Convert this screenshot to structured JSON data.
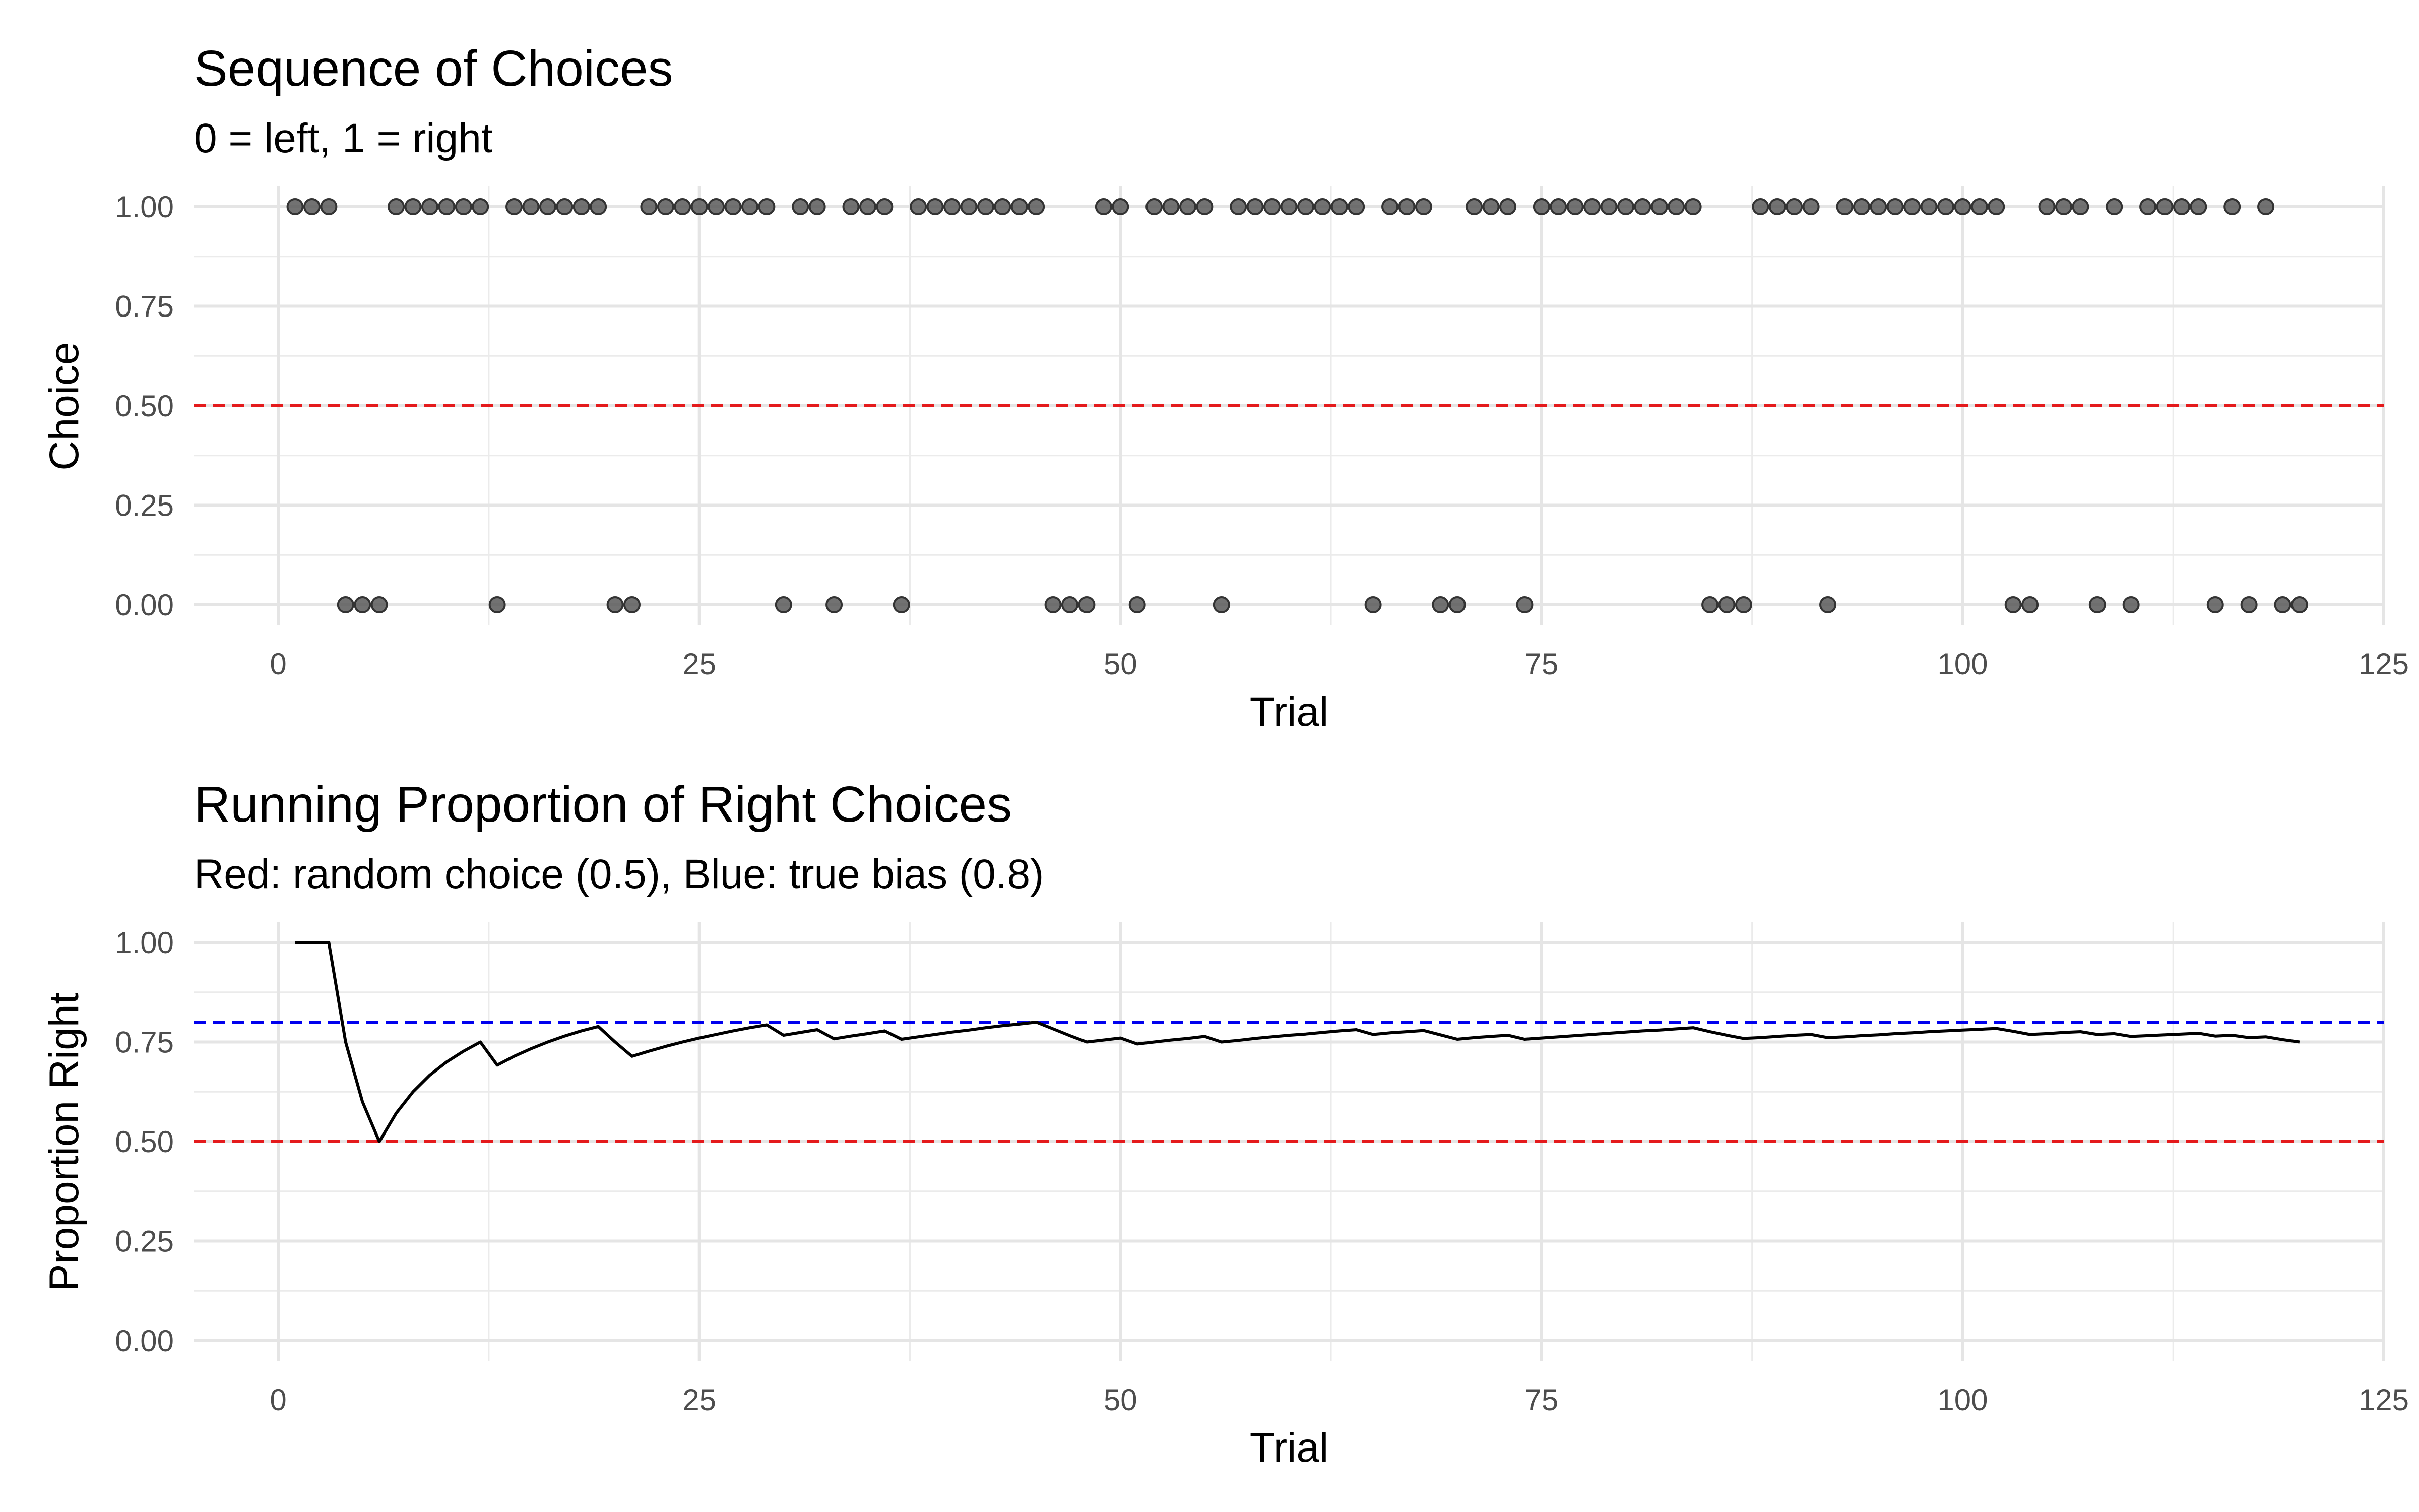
{
  "chart_data": [
    {
      "type": "scatter",
      "title": "Sequence of Choices",
      "subtitle": "0 = left, 1 = right",
      "xlabel": "Trial",
      "ylabel": "Choice",
      "xlim": [
        -5,
        125
      ],
      "ylim": [
        0,
        1
      ],
      "x_ticks": [
        0,
        25,
        50,
        75,
        100,
        125
      ],
      "y_ticks": [
        0,
        0.25,
        0.5,
        0.75,
        1
      ],
      "x_tick_labels": [
        "0",
        "25",
        "50",
        "75",
        "100",
        "125"
      ],
      "y_tick_labels": [
        "0.00",
        "0.25",
        "0.50",
        "0.75",
        "1.00"
      ],
      "grid": true,
      "point_color": "#595959",
      "reference_lines": [
        {
          "y": 0.5,
          "color": "#e41a1c",
          "style": "dashed"
        }
      ],
      "series": [
        {
          "x": [
            1,
            2,
            3,
            4,
            5,
            6,
            7,
            8,
            9,
            10,
            11,
            12,
            13,
            14,
            15,
            16,
            17,
            18,
            19,
            20,
            21,
            22,
            23,
            24,
            25,
            26,
            27,
            28,
            29,
            30,
            31,
            32,
            33,
            34,
            35,
            36,
            37,
            38,
            39,
            40,
            41,
            42,
            43,
            44,
            45,
            46,
            47,
            48,
            49,
            50,
            51,
            52,
            53,
            54,
            55,
            56,
            57,
            58,
            59,
            60,
            61,
            62,
            63,
            64,
            65,
            66,
            67,
            68,
            69,
            70,
            71,
            72,
            73,
            74,
            75,
            76,
            77,
            78,
            79,
            80,
            81,
            82,
            83,
            84,
            85,
            86,
            87,
            88,
            89,
            90,
            91,
            92,
            93,
            94,
            95,
            96,
            97,
            98,
            99,
            100,
            101,
            102,
            103,
            104,
            105,
            106,
            107,
            108,
            109,
            110,
            111,
            112,
            113,
            114,
            115,
            116,
            117,
            118,
            119,
            120
          ],
          "y": [
            1,
            1,
            1,
            0,
            0,
            0,
            1,
            1,
            1,
            1,
            1,
            1,
            0,
            1,
            1,
            1,
            1,
            1,
            1,
            0,
            0,
            1,
            1,
            1,
            1,
            1,
            1,
            1,
            1,
            0,
            1,
            1,
            0,
            1,
            1,
            1,
            0,
            1,
            1,
            1,
            1,
            1,
            1,
            1,
            1,
            0,
            0,
            0,
            1,
            1,
            0,
            1,
            1,
            1,
            1,
            0,
            1,
            1,
            1,
            1,
            1,
            1,
            1,
            1,
            0,
            1,
            1,
            1,
            0,
            0,
            1,
            1,
            1,
            0,
            1,
            1,
            1,
            1,
            1,
            1,
            1,
            1,
            1,
            1,
            0,
            0,
            0,
            1,
            1,
            1,
            1,
            0,
            1,
            1,
            1,
            1,
            1,
            1,
            1,
            1,
            1,
            1,
            0,
            0,
            1,
            1,
            1,
            0,
            1,
            0,
            1,
            1,
            1,
            1,
            0,
            1,
            0,
            1,
            0,
            0
          ]
        }
      ]
    },
    {
      "type": "line",
      "title": "Running Proportion of Right Choices",
      "subtitle": "Red: random choice (0.5), Blue: true bias (0.8)",
      "xlabel": "Trial",
      "ylabel": "Proportion Right",
      "xlim": [
        -5,
        125
      ],
      "ylim": [
        0,
        1
      ],
      "x_ticks": [
        0,
        25,
        50,
        75,
        100,
        125
      ],
      "y_ticks": [
        0,
        0.25,
        0.5,
        0.75,
        1
      ],
      "x_tick_labels": [
        "0",
        "25",
        "50",
        "75",
        "100",
        "125"
      ],
      "y_tick_labels": [
        "0.00",
        "0.25",
        "0.50",
        "0.75",
        "1.00"
      ],
      "grid": true,
      "line_color": "#000000",
      "reference_lines": [
        {
          "y": 0.5,
          "color": "#e41a1c",
          "style": "dashed"
        },
        {
          "y": 0.8,
          "color": "#0000ee",
          "style": "dashed"
        }
      ],
      "series": [
        {
          "x": [
            1,
            2,
            3,
            4,
            5,
            6,
            7,
            8,
            9,
            10,
            11,
            12,
            13,
            14,
            15,
            16,
            17,
            18,
            19,
            20,
            21,
            22,
            23,
            24,
            25,
            26,
            27,
            28,
            29,
            30,
            31,
            32,
            33,
            34,
            35,
            36,
            37,
            38,
            39,
            40,
            41,
            42,
            43,
            44,
            45,
            46,
            47,
            48,
            49,
            50,
            51,
            52,
            53,
            54,
            55,
            56,
            57,
            58,
            59,
            60,
            61,
            62,
            63,
            64,
            65,
            66,
            67,
            68,
            69,
            70,
            71,
            72,
            73,
            74,
            75,
            76,
            77,
            78,
            79,
            80,
            81,
            82,
            83,
            84,
            85,
            86,
            87,
            88,
            89,
            90,
            91,
            92,
            93,
            94,
            95,
            96,
            97,
            98,
            99,
            100,
            101,
            102,
            103,
            104,
            105,
            106,
            107,
            108,
            109,
            110,
            111,
            112,
            113,
            114,
            115,
            116,
            117,
            118,
            119,
            120
          ],
          "y": [
            1,
            1,
            1,
            0.75,
            0.6,
            0.5,
            0.571,
            0.625,
            0.667,
            0.7,
            0.727,
            0.75,
            0.692,
            0.714,
            0.733,
            0.75,
            0.765,
            0.778,
            0.789,
            0.75,
            0.714,
            0.727,
            0.739,
            0.75,
            0.76,
            0.769,
            0.778,
            0.786,
            0.793,
            0.767,
            0.774,
            0.781,
            0.758,
            0.765,
            0.771,
            0.778,
            0.757,
            0.763,
            0.769,
            0.775,
            0.78,
            0.786,
            0.791,
            0.795,
            0.8,
            0.783,
            0.766,
            0.75,
            0.755,
            0.76,
            0.745,
            0.75,
            0.755,
            0.759,
            0.764,
            0.75,
            0.754,
            0.759,
            0.763,
            0.767,
            0.77,
            0.774,
            0.778,
            0.781,
            0.769,
            0.773,
            0.776,
            0.779,
            0.768,
            0.757,
            0.761,
            0.764,
            0.767,
            0.757,
            0.76,
            0.763,
            0.766,
            0.769,
            0.772,
            0.775,
            0.778,
            0.78,
            0.783,
            0.786,
            0.776,
            0.767,
            0.759,
            0.761,
            0.764,
            0.767,
            0.769,
            0.761,
            0.763,
            0.766,
            0.768,
            0.771,
            0.773,
            0.776,
            0.778,
            0.78,
            0.782,
            0.784,
            0.777,
            0.769,
            0.771,
            0.774,
            0.776,
            0.769,
            0.771,
            0.764,
            0.766,
            0.768,
            0.77,
            0.772,
            0.765,
            0.767,
            0.761,
            0.763,
            0.756,
            0.75
          ]
        }
      ]
    }
  ]
}
